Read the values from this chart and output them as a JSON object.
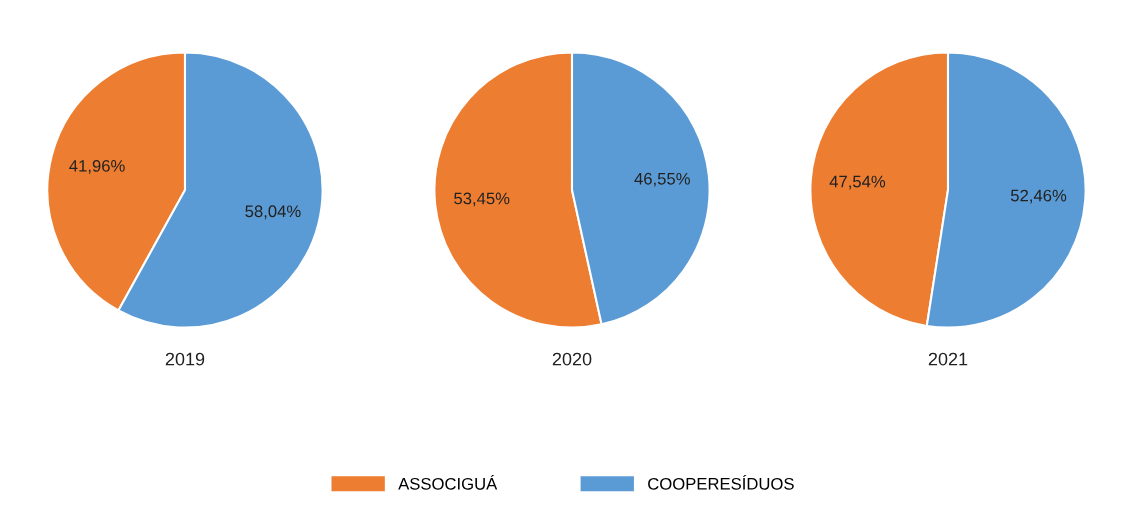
{
  "chart_data": [
    {
      "type": "pie",
      "title": "2019",
      "categories": [
        "ASSOCIGUÁ",
        "COOPERESÍDUOS"
      ],
      "values": [
        41.96,
        58.04
      ],
      "colors": [
        "#ed7d31",
        "#5b9bd5"
      ],
      "value_labels": [
        "41,96%",
        "58,04%"
      ],
      "legend": "bottom"
    },
    {
      "type": "pie",
      "title": "2020",
      "categories": [
        null,
        null
      ],
      "values": [
        53.45,
        46.55
      ],
      "colors": [
        "#ed7d31",
        "#5b9bd5"
      ],
      "value_labels": [
        "53,45%",
        "46,55%"
      ]
    },
    {
      "type": "pie",
      "title": "2021",
      "categories": [
        null,
        null
      ],
      "values": [
        47.54,
        52.46
      ],
      "colors": [
        "#ed7d31",
        "#5b9bd5"
      ],
      "value_labels": [
        "47,54%",
        "52,46%"
      ]
    }
  ]
}
